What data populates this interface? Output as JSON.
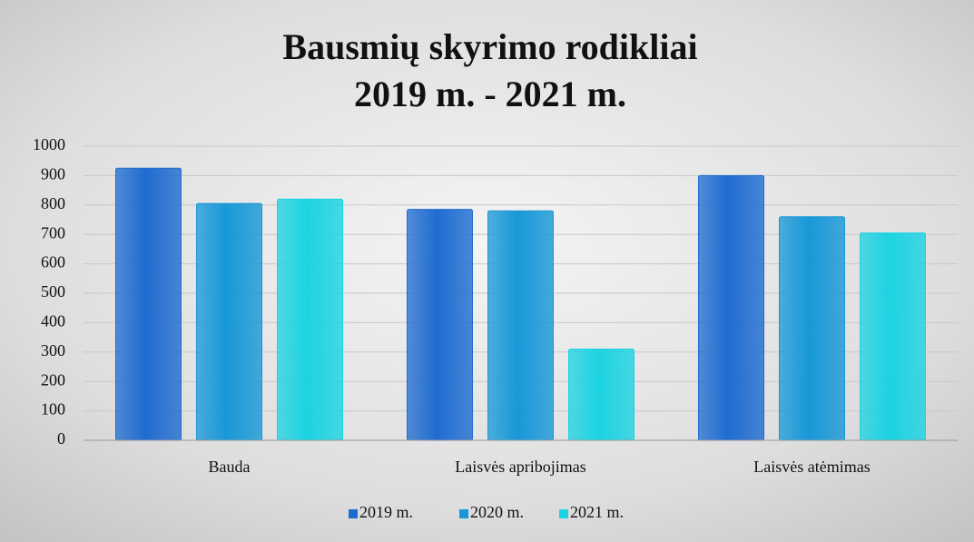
{
  "chart_data": {
    "type": "bar",
    "title_lines": [
      "Bausmių skyrimo rodikliai",
      "2019 m. - 2021 m."
    ],
    "categories": [
      "Bauda",
      "Laisvės apribojimas",
      "Laisvės atėmimas"
    ],
    "series": [
      {
        "name": "2019 m.",
        "color": "#1f6cd0",
        "values": [
          925,
          785,
          900
        ]
      },
      {
        "name": "2020 m.",
        "color": "#1898d8",
        "values": [
          805,
          780,
          760
        ]
      },
      {
        "name": "2021 m.",
        "color": "#1cd3e2",
        "values": [
          820,
          310,
          705
        ]
      }
    ],
    "ylim": [
      0,
      1000
    ],
    "yticks": [
      0,
      100,
      200,
      300,
      400,
      500,
      600,
      700,
      800,
      900,
      1000
    ],
    "grid": true,
    "legend": "bottom"
  }
}
